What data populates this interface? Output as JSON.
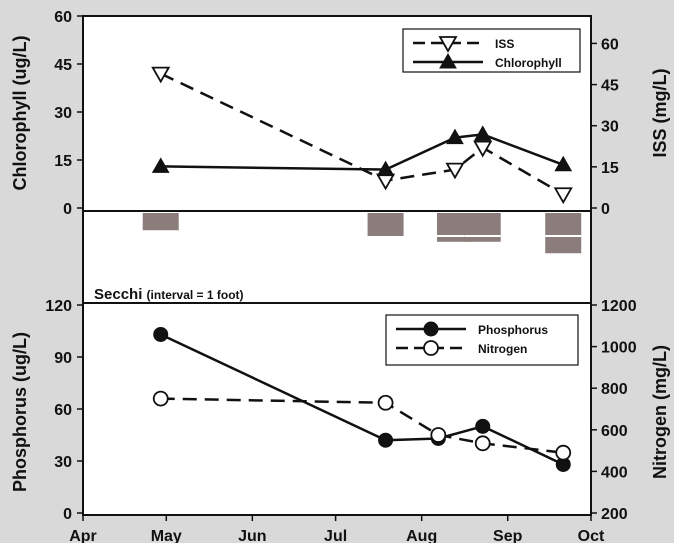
{
  "chart_data": [
    {
      "type": "line",
      "panel": "top",
      "ylabel_left": "Chlorophyll (ug/L)",
      "ylabel_right": "ISS (mg/L)",
      "ylim_left": [
        0,
        60
      ],
      "yticks_left": [
        "0",
        "15",
        "30",
        "45",
        "60"
      ],
      "ylim_right": [
        0,
        70
      ],
      "yticks_right": [
        "0",
        "15",
        "30",
        "45",
        "60"
      ],
      "legend_position": "top-right",
      "series": [
        {
          "name": "ISS",
          "axis": "right",
          "marker": "open-triangle-down",
          "line": "dashed",
          "x": [
            "1999-04-29",
            "1999-07-19",
            "1999-08-13",
            "1999-08-23",
            "1999-09-21"
          ],
          "y": [
            49,
            10,
            14,
            22,
            5
          ]
        },
        {
          "name": "Chlorophyll",
          "axis": "left",
          "marker": "filled-triangle-up",
          "line": "solid",
          "x": [
            "1999-04-29",
            "1999-07-19",
            "1999-08-13",
            "1999-08-23",
            "1999-09-21"
          ],
          "y": [
            13,
            12,
            22,
            23,
            13.5
          ]
        }
      ]
    },
    {
      "type": "bar",
      "panel": "middle",
      "label": "Secchi",
      "label_note": "(interval = 1 foot)",
      "unit_feet": 1,
      "x": [
        "1999-04-29",
        "1999-07-19",
        "1999-08-13",
        "1999-08-23",
        "1999-09-21"
      ],
      "values": [
        1.5,
        2,
        2.5,
        2.5,
        3.5
      ]
    },
    {
      "type": "line",
      "panel": "bottom",
      "ylabel_left": "Phosphorus (ug/L)",
      "ylabel_right": "Nitrogen (mg/L)",
      "ylim_left": [
        0,
        120
      ],
      "yticks_left": [
        "0",
        "30",
        "60",
        "90",
        "120"
      ],
      "ylim_right": [
        200,
        1200
      ],
      "yticks_right": [
        "200",
        "400",
        "600",
        "800",
        "1000",
        "1200"
      ],
      "legend_position": "top-right",
      "series": [
        {
          "name": "Phosphorus",
          "axis": "left",
          "marker": "filled-circle",
          "line": "solid",
          "x": [
            "1999-04-29",
            "1999-07-19",
            "1999-08-07",
            "1999-08-23",
            "1999-09-21"
          ],
          "y": [
            103,
            42,
            43,
            50,
            28
          ]
        },
        {
          "name": "Nitrogen",
          "axis": "right",
          "marker": "open-circle",
          "line": "dashed",
          "x": [
            "1999-04-29",
            "1999-07-19",
            "1999-08-07",
            "1999-08-23",
            "1999-09-21"
          ],
          "y": [
            750,
            730,
            575,
            535,
            490
          ]
        }
      ]
    }
  ],
  "x_axis": {
    "range": [
      "1999-04-01",
      "1999-10-01"
    ],
    "tick_dates": [
      "1999-04-01",
      "1999-05-01",
      "1999-06-01",
      "1999-07-01",
      "1999-08-01",
      "1999-09-01",
      "1999-10-01"
    ],
    "tick_labels": [
      "Apr",
      "May",
      "Jun",
      "Jul",
      "Aug",
      "Sep",
      "Oct"
    ]
  },
  "colors": {
    "background": "#d9d9d9",
    "plot_background": "#ffffff",
    "secchi_bar": "#8b7d7b",
    "ink": "#111111"
  }
}
